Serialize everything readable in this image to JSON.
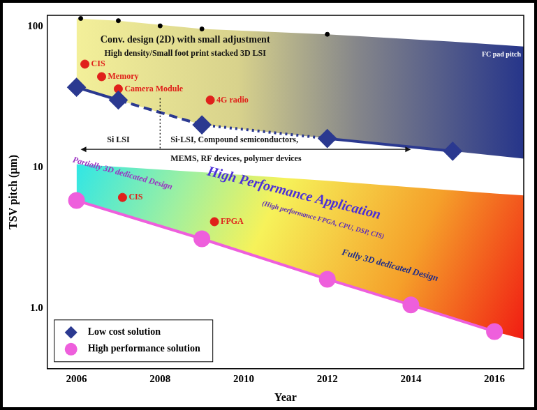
{
  "chart_data": {
    "type": "line",
    "x_label": "Year",
    "y_label": "TSV pitch (µm)",
    "xlim": [
      2005.3,
      2016.7
    ],
    "xticks": [
      2006,
      2008,
      2010,
      2012,
      2014,
      2016
    ],
    "ylim": [
      0.37,
      120
    ],
    "yticks": [
      {
        "value": 1,
        "label": "1.0"
      },
      10,
      100
    ],
    "log": "y",
    "grid": false,
    "legend": "lower left",
    "series": [
      {
        "name": "Low cost solution",
        "color": "#2b3990",
        "marker": "diamond",
        "line_style": [
          "solid",
          "solid",
          "dashed",
          "dotted"
        ],
        "x": [
          2006,
          2007,
          2009,
          2012,
          2015
        ],
        "values": [
          37,
          30,
          20,
          16,
          13
        ]
      },
      {
        "name": "High performance solution",
        "color": "#ee5fdc",
        "marker": "circle",
        "line_style": "solid",
        "x": [
          2006,
          2009,
          2012,
          2014,
          2016
        ],
        "values": [
          5.8,
          3.1,
          1.6,
          1.05,
          0.68
        ]
      }
    ],
    "labeled_points": {
      "color": "#e0201a",
      "marker": "circle",
      "x": [
        2006.2,
        2006.6,
        2007,
        2009.2,
        2007.1,
        2009.3
      ],
      "values": [
        54,
        44,
        36,
        30,
        6.1,
        4.1
      ],
      "labels": [
        "CIS",
        "Memory",
        "Camera Module",
        "4G radio",
        "CIS",
        "FPGA"
      ]
    },
    "fc_pad_pitch": {
      "label": "FC pad pitch",
      "color": "#000000",
      "marker": "circle",
      "x": [
        2006.1,
        2007,
        2008,
        2009,
        2012
      ],
      "values": [
        114,
        110,
        101,
        96,
        88
      ]
    },
    "regions": [
      {
        "label": "Conv. design (2D) with small adjustment",
        "x": [
          2006,
          2007,
          2009,
          2012,
          2015,
          2016.7
        ],
        "upper": [
          114,
          110,
          96,
          88,
          78,
          72
        ],
        "lower": [
          37,
          30,
          20,
          16,
          13,
          11.5
        ]
      },
      {
        "label": "High Performance Application",
        "x": [
          2006,
          2009,
          2012,
          2014,
          2016,
          2016.7
        ],
        "upper": [
          10.5,
          9.2,
          8.0,
          7.2,
          6.5,
          6.3
        ],
        "lower": [
          5.8,
          3.1,
          1.6,
          1.05,
          0.68,
          0.6
        ]
      }
    ],
    "annotations": [
      "High density/Small foot print stacked 3D LSI",
      "Si LSI",
      "Si-LSI, Compound semiconductors, MEMS, RF devices, polymer devices",
      "Partially 3D dedicated Design",
      "(High performance FPGA, CPU, DSP, CIS)",
      "Fully 3D dedicated Design"
    ]
  }
}
